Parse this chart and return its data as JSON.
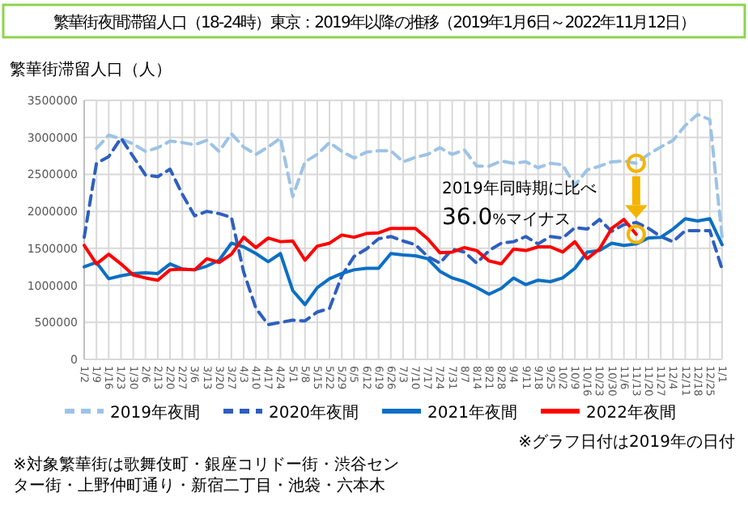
{
  "chart_data": {
    "type": "line",
    "title": "繁華街夜間滞留人口（18-24時）東京：2019年以降の推移（2019年1月6日～2022年11月12日）",
    "ylabel": "繁華街滞留人口（人）",
    "categories": [
      "1/2",
      "1/9",
      "1/16",
      "1/23",
      "1/30",
      "2/6",
      "2/13",
      "2/20",
      "2/27",
      "3/6",
      "3/13",
      "3/20",
      "3/27",
      "4/3",
      "4/10",
      "4/17",
      "4/24",
      "5/1",
      "5/8",
      "5/15",
      "5/22",
      "5/29",
      "6/5",
      "6/12",
      "6/19",
      "6/26",
      "7/3",
      "7/10",
      "7/17",
      "7/24",
      "7/31",
      "8/7",
      "8/14",
      "8/21",
      "8/28",
      "9/4",
      "9/11",
      "9/18",
      "9/25",
      "10/2",
      "10/9",
      "10/16",
      "10/23",
      "10/30",
      "11/6",
      "11/13",
      "11/20",
      "11/27",
      "12/4",
      "12/11",
      "12/18",
      "12/25",
      "1/1"
    ],
    "series": [
      {
        "name": "2019年夜間",
        "color": "#9dc3e6",
        "line_style": "dashed",
        "values": [
          null,
          2850000,
          3030000,
          2980000,
          2910000,
          2810000,
          2860000,
          2950000,
          2930000,
          2900000,
          2960000,
          2810000,
          3050000,
          2870000,
          2770000,
          2870000,
          2990000,
          2200000,
          2670000,
          2770000,
          2930000,
          2810000,
          2720000,
          2800000,
          2820000,
          2820000,
          2670000,
          2730000,
          2770000,
          2860000,
          2770000,
          2830000,
          2610000,
          2610000,
          2680000,
          2650000,
          2670000,
          2590000,
          2650000,
          2630000,
          2350000,
          2560000,
          2610000,
          2670000,
          2680000,
          2650000,
          2770000,
          2870000,
          2960000,
          3160000,
          3310000,
          3240000,
          1650000
        ]
      },
      {
        "name": "2020年夜間",
        "color": "#2e5fbf",
        "line_style": "dashed",
        "values": [
          1650000,
          2650000,
          2740000,
          2990000,
          2740000,
          2490000,
          2470000,
          2570000,
          2230000,
          1940000,
          2000000,
          1970000,
          1920000,
          1180000,
          690000,
          470000,
          500000,
          530000,
          520000,
          640000,
          690000,
          1130000,
          1390000,
          1490000,
          1630000,
          1660000,
          1600000,
          1550000,
          1390000,
          1300000,
          1490000,
          1450000,
          1300000,
          1470000,
          1570000,
          1590000,
          1660000,
          1560000,
          1660000,
          1640000,
          1780000,
          1760000,
          1890000,
          1730000,
          1820000,
          1850000,
          1770000,
          1660000,
          1590000,
          1740000,
          1740000,
          1740000,
          1220000
        ]
      },
      {
        "name": "2021年夜間",
        "color": "#0b6fc4",
        "line_style": "solid",
        "values": [
          1250000,
          1310000,
          1090000,
          1130000,
          1160000,
          1170000,
          1160000,
          1290000,
          1220000,
          1210000,
          1260000,
          1340000,
          1570000,
          1520000,
          1430000,
          1320000,
          1430000,
          930000,
          740000,
          970000,
          1090000,
          1160000,
          1210000,
          1230000,
          1230000,
          1430000,
          1410000,
          1400000,
          1360000,
          1190000,
          1100000,
          1050000,
          970000,
          880000,
          960000,
          1100000,
          1010000,
          1070000,
          1050000,
          1100000,
          1230000,
          1450000,
          1470000,
          1570000,
          1540000,
          1560000,
          1640000,
          1650000,
          1760000,
          1900000,
          1870000,
          1900000,
          1550000
        ]
      },
      {
        "name": "2022年夜間",
        "color": "#ff0000",
        "line_style": "solid",
        "values": [
          1540000,
          1290000,
          1420000,
          1290000,
          1140000,
          1100000,
          1070000,
          1210000,
          1220000,
          1210000,
          1360000,
          1310000,
          1420000,
          1650000,
          1510000,
          1640000,
          1590000,
          1600000,
          1340000,
          1530000,
          1570000,
          1680000,
          1650000,
          1700000,
          1710000,
          1770000,
          1770000,
          1770000,
          1630000,
          1440000,
          1450000,
          1510000,
          1470000,
          1330000,
          1290000,
          1490000,
          1470000,
          1520000,
          1520000,
          1450000,
          1590000,
          1360000,
          1490000,
          1770000,
          1890000,
          1690000,
          null,
          null,
          null,
          null,
          null,
          null,
          null
        ]
      }
    ],
    "ylim": [
      0,
      3500000
    ],
    "yticks": [
      0,
      500000,
      1000000,
      1500000,
      2000000,
      2500000,
      3000000,
      3500000
    ],
    "grid": true,
    "legend": "bottom",
    "annotations": [
      {
        "text": "2019年同時期に比べ",
        "x": "11/13",
        "y": 2650000
      },
      {
        "text": "36.0%マイナス",
        "x": "11/13",
        "y": 1690000
      },
      "※グラフ日付は2019年の日付",
      "※対象繁華街は歌舞伎町・銀座コリドー街・渋谷センター街・上野仲町通り・新宿二丁目・池袋・六本木"
    ]
  }
}
